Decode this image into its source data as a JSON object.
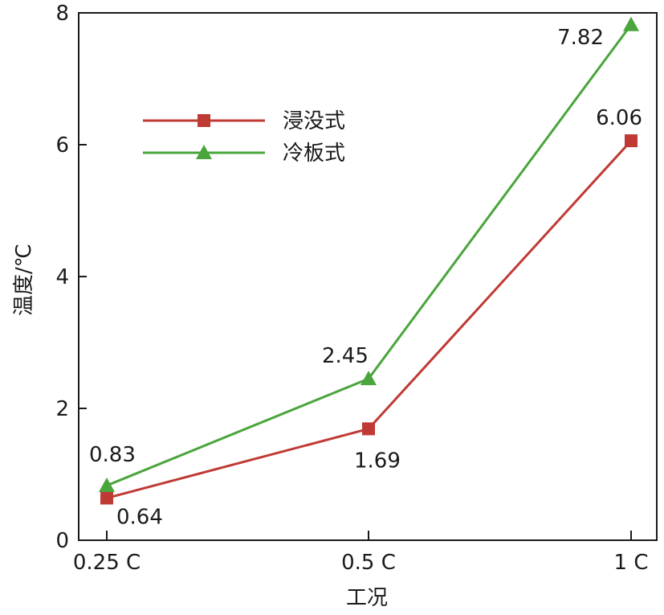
{
  "chart_data": {
    "type": "line",
    "categories": [
      "0.25 C",
      "0.5 C",
      "1 C"
    ],
    "series": [
      {
        "name": "浸没式",
        "values": [
          0.64,
          1.69,
          6.06
        ],
        "color": "#c03a35",
        "marker": "square"
      },
      {
        "name": "冷板式",
        "values": [
          0.83,
          2.45,
          7.82
        ],
        "color": "#4aa53c",
        "marker": "triangle"
      }
    ],
    "data_labels": [
      [
        "0.64",
        "1.69",
        "6.06"
      ],
      [
        "0.83",
        "2.45",
        "7.82"
      ]
    ],
    "xlabel": "工况",
    "ylabel": "温度/℃",
    "ylim": [
      0,
      8
    ],
    "yticks": [
      "0",
      "2",
      "4",
      "6",
      "8"
    ],
    "grid": false,
    "legend_position": "upper-left"
  }
}
